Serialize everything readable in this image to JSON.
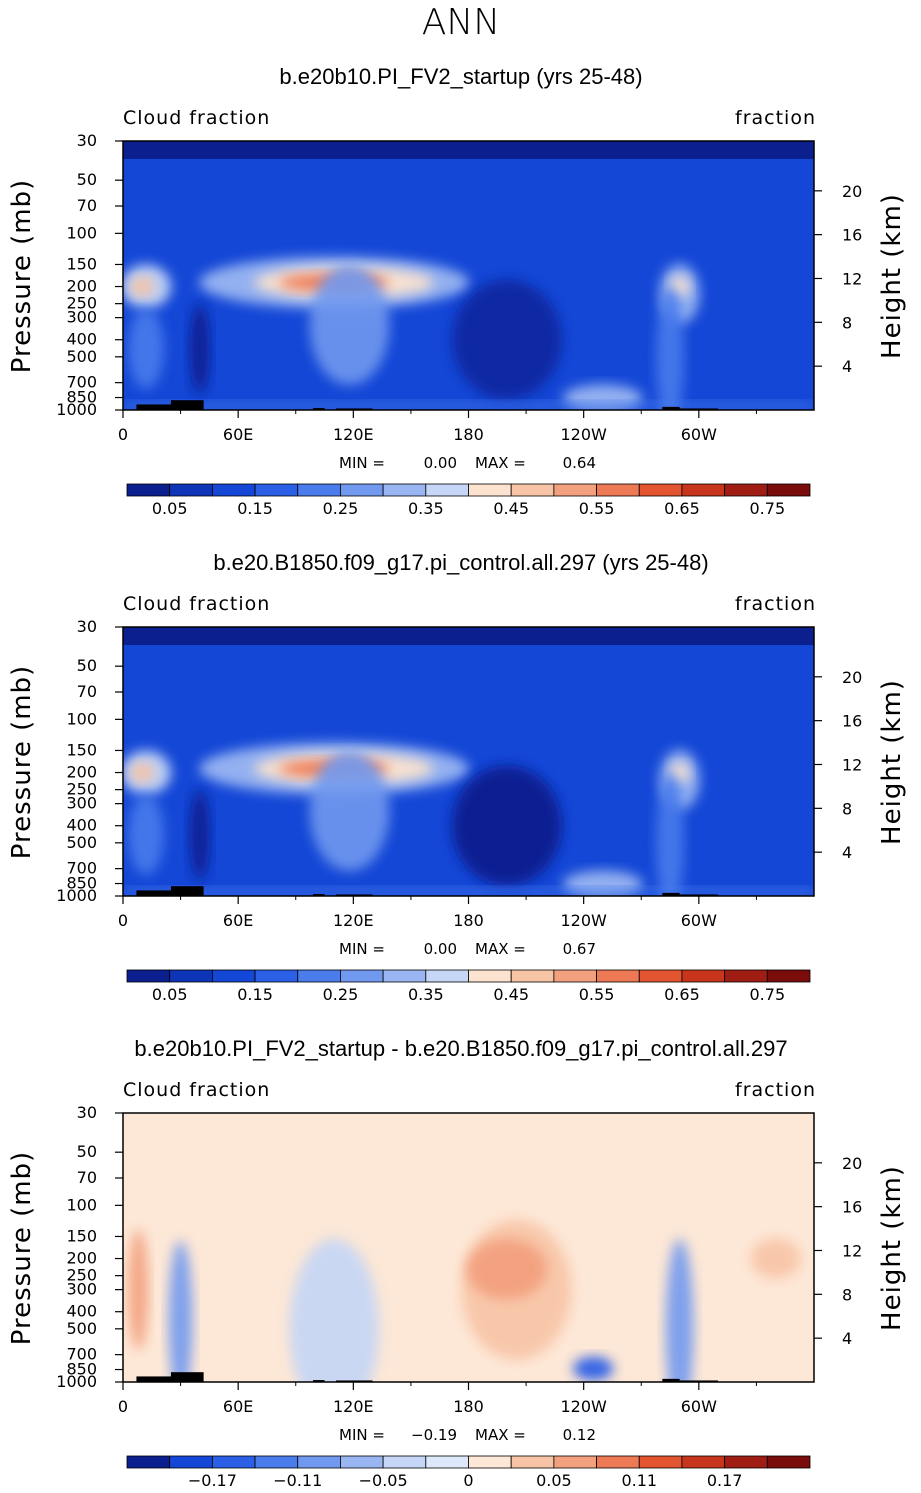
{
  "figure_title": "ANN",
  "colors": {
    "cloud_scale": [
      "#0b1f8f",
      "#0e35b8",
      "#1447d6",
      "#2a5fe6",
      "#4a7cec",
      "#7199ef",
      "#9ab6f2",
      "#c5d6f6",
      "#fce3cf",
      "#f8c4a6",
      "#f3a07e",
      "#ee7a55",
      "#e35430",
      "#c7361c",
      "#a01d14",
      "#7a0c0c"
    ],
    "diff_scale": [
      "#0b1f8f",
      "#1447d6",
      "#2a5fe6",
      "#4a7cec",
      "#7199ef",
      "#9ab6f2",
      "#c5d6f6",
      "#dde8fa",
      "#fde7d6",
      "#f8c4a6",
      "#f3a07e",
      "#ee7a55",
      "#e35430",
      "#c7361c",
      "#a01d14",
      "#7a0c0c"
    ],
    "land": "#000000"
  },
  "panels": [
    {
      "title": "b.e20b10.PI_FV2_startup (yrs 25-48)",
      "left_label": "Cloud fraction",
      "right_label": "fraction",
      "stats": {
        "min_label": "MIN =",
        "min": "0.00",
        "max_label": "MAX =",
        "max": "0.64"
      }
    },
    {
      "title": "b.e20.B1850.f09_g17.pi_control.all.297 (yrs 25-48)",
      "left_label": "Cloud fraction",
      "right_label": "fraction",
      "stats": {
        "min_label": "MIN =",
        "min": "0.00",
        "max_label": "MAX =",
        "max": "0.67"
      }
    },
    {
      "title": "b.e20b10.PI_FV2_startup - b.e20.B1850.f09_g17.pi_control.all.297",
      "left_label": "Cloud fraction",
      "right_label": "fraction",
      "stats": {
        "min_label": "MIN =",
        "min": "−0.19",
        "max_label": "MAX =",
        "max": "0.12"
      }
    }
  ],
  "chart_data": [
    {
      "type": "heatmap",
      "xlabel": "",
      "ylabel": "Pressure (mb)",
      "ylabel_right": "Height (km)",
      "x_ticks": [
        "0",
        "60E",
        "120E",
        "180",
        "120W",
        "60W"
      ],
      "x_tick_lon": [
        0,
        60,
        120,
        180,
        240,
        300
      ],
      "xlim": [
        0,
        360
      ],
      "y_ticks": [
        "30",
        "50",
        "70",
        "100",
        "150",
        "200",
        "250",
        "300",
        "400",
        "500",
        "700",
        "850",
        "1000"
      ],
      "y_tick_values": [
        30,
        50,
        70,
        100,
        150,
        200,
        250,
        300,
        400,
        500,
        700,
        850,
        1000
      ],
      "ylim": [
        1000,
        30
      ],
      "y_right_ticks": [
        "20",
        "16",
        "12",
        "8",
        "4"
      ],
      "y_right_values": [
        20,
        16,
        12,
        8,
        4
      ],
      "colorbar_labels": [
        "0.05",
        "0.15",
        "0.25",
        "0.35",
        "0.45",
        "0.55",
        "0.65",
        "0.75"
      ],
      "colorbar_levels": [
        0.05,
        0.15,
        0.25,
        0.35,
        0.45,
        0.55,
        0.65,
        0.75
      ],
      "min": 0.0,
      "max": 0.64
    },
    {
      "type": "heatmap",
      "xlabel": "",
      "ylabel": "Pressure (mb)",
      "ylabel_right": "Height (km)",
      "x_ticks": [
        "0",
        "60E",
        "120E",
        "180",
        "120W",
        "60W"
      ],
      "x_tick_lon": [
        0,
        60,
        120,
        180,
        240,
        300
      ],
      "xlim": [
        0,
        360
      ],
      "y_ticks": [
        "30",
        "50",
        "70",
        "100",
        "150",
        "200",
        "250",
        "300",
        "400",
        "500",
        "700",
        "850",
        "1000"
      ],
      "y_tick_values": [
        30,
        50,
        70,
        100,
        150,
        200,
        250,
        300,
        400,
        500,
        700,
        850,
        1000
      ],
      "ylim": [
        1000,
        30
      ],
      "y_right_ticks": [
        "20",
        "16",
        "12",
        "8",
        "4"
      ],
      "y_right_values": [
        20,
        16,
        12,
        8,
        4
      ],
      "colorbar_labels": [
        "0.05",
        "0.15",
        "0.25",
        "0.35",
        "0.45",
        "0.55",
        "0.65",
        "0.75"
      ],
      "colorbar_levels": [
        0.05,
        0.15,
        0.25,
        0.35,
        0.45,
        0.55,
        0.65,
        0.75
      ],
      "min": 0.0,
      "max": 0.67
    },
    {
      "type": "heatmap",
      "xlabel": "",
      "ylabel": "Pressure (mb)",
      "ylabel_right": "Height (km)",
      "x_ticks": [
        "0",
        "60E",
        "120E",
        "180",
        "120W",
        "60W"
      ],
      "x_tick_lon": [
        0,
        60,
        120,
        180,
        240,
        300
      ],
      "xlim": [
        0,
        360
      ],
      "y_ticks": [
        "30",
        "50",
        "70",
        "100",
        "150",
        "200",
        "250",
        "300",
        "400",
        "500",
        "700",
        "850",
        "1000"
      ],
      "y_tick_values": [
        30,
        50,
        70,
        100,
        150,
        200,
        250,
        300,
        400,
        500,
        700,
        850,
        1000
      ],
      "ylim": [
        1000,
        30
      ],
      "y_right_ticks": [
        "20",
        "16",
        "12",
        "8",
        "4"
      ],
      "y_right_values": [
        20,
        16,
        12,
        8,
        4
      ],
      "colorbar_labels": [
        "−0.17",
        "−0.11",
        "−0.05",
        "0",
        "0.05",
        "0.11",
        "0.17"
      ],
      "colorbar_levels": [
        -0.17,
        -0.11,
        -0.05,
        0,
        0.05,
        0.11,
        0.17
      ],
      "min": -0.19,
      "max": 0.12
    }
  ]
}
